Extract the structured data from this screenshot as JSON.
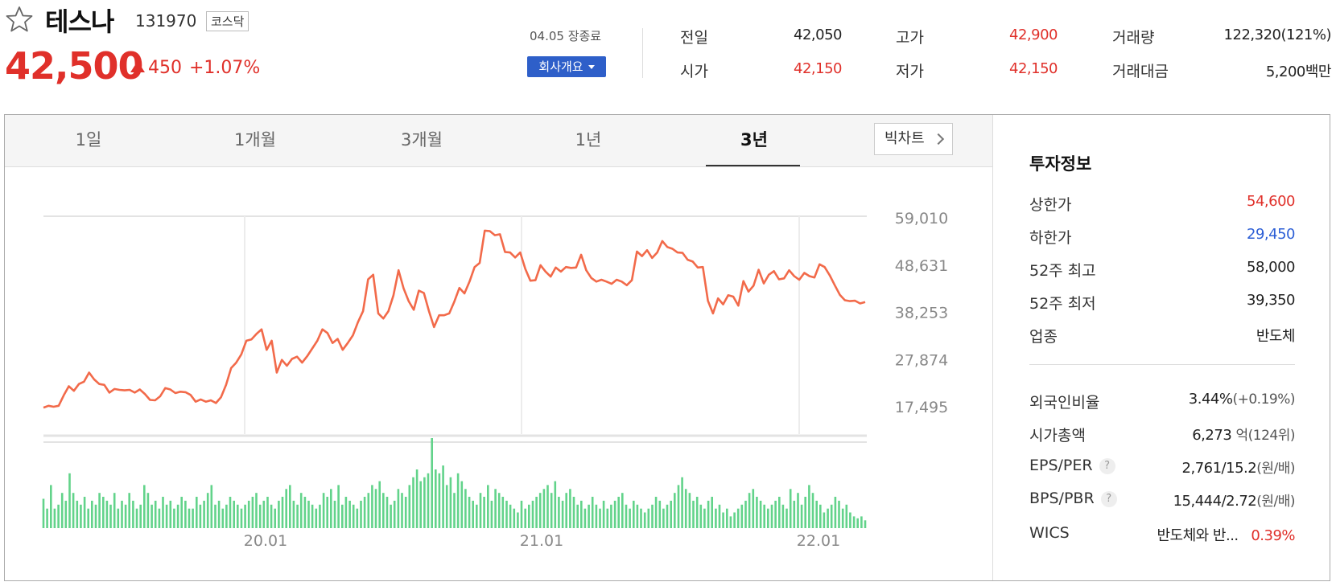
{
  "stock": {
    "name": "테스나",
    "code": "131970",
    "market": "코스닥",
    "price": "42,500",
    "change": "450",
    "change_pct": "+1.07%"
  },
  "session": {
    "status": "04.05 장종료",
    "company_button": "회사개요"
  },
  "stats": [
    {
      "label": "전일",
      "value": "42,050",
      "color": "dark"
    },
    {
      "label": "시가",
      "value": "42,150",
      "color": "red"
    },
    {
      "label": "고가",
      "value": "42,900",
      "color": "red"
    },
    {
      "label": "저가",
      "value": "42,150",
      "color": "red"
    },
    {
      "label": "거래량",
      "value": "122,320(121%)",
      "color": "dark"
    },
    {
      "label": "거래대금",
      "value": "5,200백만",
      "color": "dark"
    }
  ],
  "tabs": [
    "1일",
    "1개월",
    "3개월",
    "1년",
    "3년"
  ],
  "active_tab": "3년",
  "big_chart_button": "빅차트",
  "chart_data": {
    "type": "line",
    "y_ticks": [
      "59,010",
      "48,631",
      "38,253",
      "27,874",
      "17,495"
    ],
    "x_ticks": [
      "20.01",
      "21.01",
      "22.01"
    ],
    "y_range": [
      17495,
      59010
    ],
    "line_color": "#f26a4a",
    "volume_color": "#62d38a",
    "series": [
      {
        "values": [
          17300,
          17700,
          17500,
          17700,
          20000,
          22000,
          21000,
          22500,
          23000,
          25000,
          23500,
          22500,
          22300,
          20600,
          21400,
          21200,
          21100,
          21200,
          20600,
          21300,
          20300,
          19000,
          18900,
          19800,
          21600,
          21300,
          20500,
          20800,
          20700,
          20100,
          18600,
          19100,
          18600,
          18900,
          18300,
          19600,
          22300,
          26000,
          27200,
          29000,
          32000,
          32300,
          33500,
          34500,
          30000,
          32000,
          25000,
          27800,
          26500,
          28000,
          28500,
          27200,
          28600,
          30300,
          32000,
          34500,
          33700,
          31500,
          32400,
          30000,
          31500,
          33200,
          36100,
          38500,
          45500,
          46500,
          38000,
          36900,
          38500,
          42000,
          47500,
          43500,
          40700,
          38800,
          43000,
          42500,
          38500,
          35000,
          37600,
          37600,
          38000,
          40600,
          43600,
          42400,
          45000,
          48200,
          49100,
          56200,
          56100,
          55200,
          55400,
          51500,
          51400,
          50300,
          51400,
          47800,
          45200,
          45300,
          48600,
          47200,
          46100,
          48100,
          47200,
          48200,
          48000,
          48100,
          50900,
          47500,
          45800,
          45000,
          45400,
          45000,
          44500,
          45400,
          45000,
          44200,
          45300,
          51600,
          50600,
          51900,
          50200,
          51400,
          53900,
          52600,
          52200,
          51400,
          51300,
          49800,
          49400,
          48100,
          48200,
          40800,
          38000,
          41300,
          40000,
          42000,
          41700,
          39700,
          45100,
          42800,
          44100,
          47600,
          44600,
          46500,
          47300,
          45500,
          45700,
          47500,
          46200,
          45400,
          46900,
          46200,
          45900,
          48800,
          48200,
          46400,
          44200,
          42100,
          40900,
          40700,
          40800,
          40200,
          40500
        ]
      },
      {
        "name": "volume",
        "values": [
          15,
          10,
          22,
          10,
          12,
          18,
          14,
          28,
          18,
          14,
          12,
          16,
          10,
          14,
          12,
          18,
          16,
          14,
          12,
          18,
          10,
          14,
          12,
          18,
          14,
          10,
          12,
          22,
          18,
          12,
          14,
          10,
          16,
          12,
          14,
          10,
          12,
          16,
          14,
          10,
          10,
          16,
          12,
          14,
          18,
          22,
          12,
          14,
          10,
          12,
          16,
          14,
          12,
          10,
          12,
          14,
          16,
          18,
          12,
          14,
          16,
          12,
          10,
          14,
          16,
          20,
          22,
          14,
          12,
          18,
          16,
          14,
          12,
          10,
          12,
          18,
          16,
          20,
          14,
          22,
          12,
          16,
          14,
          12,
          10,
          14,
          16,
          18,
          22,
          20,
          24,
          18,
          16,
          12,
          14,
          20,
          18,
          16,
          22,
          26,
          30,
          24,
          26,
          28,
          46,
          30,
          28,
          32,
          22,
          26,
          18,
          28,
          24,
          20,
          16,
          14,
          12,
          18,
          16,
          22,
          14,
          20,
          18,
          16,
          14,
          12,
          10,
          8,
          14,
          10,
          12,
          14,
          16,
          18,
          20,
          22,
          18,
          24,
          16,
          14,
          18,
          20,
          16,
          12,
          14,
          10,
          12,
          16,
          12,
          10,
          14,
          10,
          12,
          14,
          16,
          18,
          12,
          10,
          14,
          12,
          10,
          8,
          10,
          12,
          16,
          14,
          10,
          12,
          14,
          18,
          22,
          26,
          20,
          18,
          14,
          16,
          12,
          10,
          14,
          16,
          10,
          12,
          8,
          10,
          6,
          8,
          10,
          12,
          14,
          18,
          20,
          16,
          14,
          12,
          10,
          12,
          14,
          16,
          12,
          10,
          20,
          14,
          18,
          12,
          16,
          22,
          18,
          14,
          12,
          8,
          10,
          12,
          16,
          14,
          10,
          12,
          8,
          6,
          5,
          6,
          4
        ]
      }
    ]
  },
  "invest": {
    "title": "투자정보",
    "rows_top": [
      {
        "label": "상한가",
        "value": "54,600",
        "color": "red"
      },
      {
        "label": "하한가",
        "value": "29,450",
        "color": "blue"
      },
      {
        "label": "52주 최고",
        "value": "58,000",
        "color": "dark"
      },
      {
        "label": "52주 최저",
        "value": "39,350",
        "color": "dark"
      },
      {
        "label": "업종",
        "value": "반도체",
        "color": "dark"
      }
    ],
    "foreign": {
      "label": "외국인비율",
      "value": "3.44%",
      "sub": "(+0.19%)"
    },
    "mcap": {
      "label": "시가총액",
      "value": "6,273",
      "sub": "억(124위)"
    },
    "eps": {
      "label": "EPS/PER",
      "value": "2,761/15.2",
      "sub": "(원/배)"
    },
    "bps": {
      "label": "BPS/PBR",
      "value": "15,444/2.72",
      "sub": "(원/배)"
    },
    "wics": {
      "label": "WICS",
      "value": "반도체와 반...",
      "pct": "0.39%"
    }
  }
}
